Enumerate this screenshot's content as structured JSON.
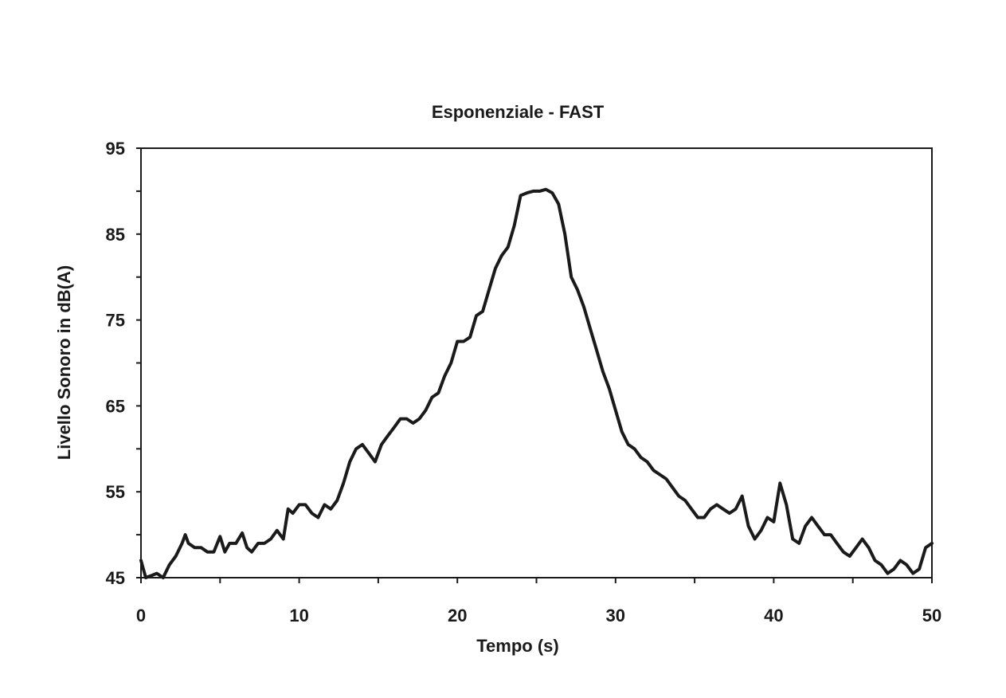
{
  "chart_data": {
    "type": "line",
    "title": "Esponenziale - FAST",
    "xlabel": "Tempo (s)",
    "ylabel": "Livello Sonoro in dB(A)",
    "xlim": [
      0,
      50
    ],
    "ylim": [
      45,
      95
    ],
    "x_ticks": [
      "0",
      "10",
      "20",
      "30",
      "40",
      "50"
    ],
    "y_ticks": [
      "45",
      "55",
      "65",
      "75",
      "85",
      "95"
    ],
    "grid": false,
    "legend": "none",
    "line_color": "#1a1a1a",
    "series": [
      {
        "x": [
          0,
          0.3,
          0.6,
          1.0,
          1.4,
          1.8,
          2.2,
          2.6,
          2.8,
          3.0,
          3.4,
          3.8,
          4.2,
          4.6,
          5.0,
          5.3,
          5.6,
          6.0,
          6.4,
          6.7,
          7.0,
          7.4,
          7.8,
          8.2,
          8.6,
          9.0,
          9.3,
          9.6,
          10.0,
          10.4,
          10.8,
          11.2,
          11.6,
          12.0,
          12.4,
          12.8,
          13.2,
          13.6,
          14.0,
          14.4,
          14.8,
          15.2,
          15.6,
          16.0,
          16.4,
          16.8,
          17.2,
          17.6,
          18.0,
          18.4,
          18.8,
          19.2,
          19.6,
          20.0,
          20.4,
          20.8,
          21.2,
          21.6,
          22.0,
          22.4,
          22.8,
          23.2,
          23.6,
          24.0,
          24.4,
          24.8,
          25.2,
          25.6,
          26.0,
          26.4,
          26.8,
          27.2,
          27.6,
          28.0,
          28.4,
          28.8,
          29.2,
          29.6,
          30.0,
          30.4,
          30.8,
          31.2,
          31.6,
          32.0,
          32.4,
          32.8,
          33.2,
          33.6,
          34.0,
          34.4,
          34.8,
          35.2,
          35.6,
          36.0,
          36.4,
          36.8,
          37.2,
          37.6,
          38.0,
          38.4,
          38.8,
          39.2,
          39.6,
          40.0,
          40.4,
          40.8,
          41.2,
          41.6,
          42.0,
          42.4,
          42.8,
          43.2,
          43.6,
          44.0,
          44.4,
          44.8,
          45.2,
          45.6,
          46.0,
          46.4,
          46.8,
          47.2,
          47.6,
          48.0,
          48.4,
          48.8,
          49.2,
          49.6,
          50.0
        ],
        "y": [
          47,
          45,
          45.2,
          45.5,
          45,
          46.5,
          47.5,
          49,
          50,
          49,
          48.5,
          48.5,
          48,
          48,
          49.8,
          48,
          49,
          49,
          50.2,
          48.5,
          48,
          49,
          49,
          49.5,
          50.5,
          49.5,
          53,
          52.5,
          53.5,
          53.5,
          52.5,
          52,
          53.5,
          53,
          54,
          56,
          58.5,
          60,
          60.5,
          59.5,
          58.5,
          60.5,
          61.5,
          62.5,
          63.5,
          63.5,
          63,
          63.5,
          64.5,
          66,
          66.5,
          68.5,
          70,
          72.5,
          72.5,
          73,
          75.5,
          76,
          78.5,
          81,
          82.5,
          83.5,
          86,
          89.5,
          89.8,
          90,
          90,
          90.2,
          89.8,
          88.5,
          85,
          80,
          78.5,
          76.5,
          74,
          71.5,
          69,
          67,
          64.5,
          62,
          60.5,
          60,
          59,
          58.5,
          57.5,
          57,
          56.5,
          55.5,
          54.5,
          54,
          53,
          52,
          52,
          53,
          53.5,
          53,
          52.5,
          53,
          54.5,
          51,
          49.5,
          50.5,
          52,
          51.5,
          56,
          53.5,
          49.5,
          49,
          51,
          52,
          51,
          50,
          50,
          49,
          48,
          47.5,
          48.5,
          49.5,
          48.5,
          47,
          46.5,
          45.5,
          46,
          47,
          46.5,
          45.5,
          46,
          48.5,
          49
        ]
      }
    ]
  }
}
